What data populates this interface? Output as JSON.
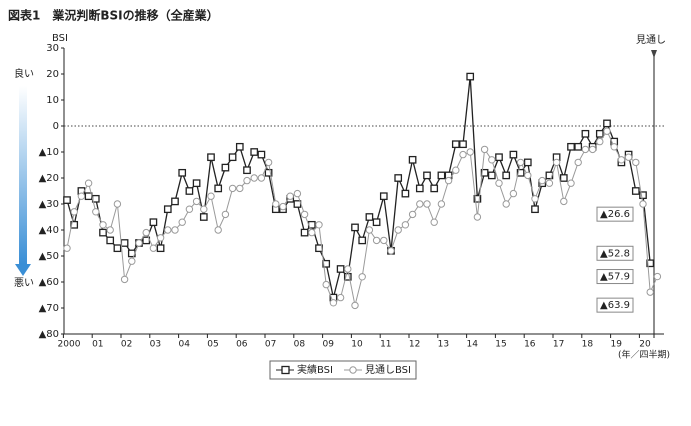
{
  "chart_data": {
    "type": "line",
    "title": "図表1　業況判断BSIの推移（全産業）",
    "y_axis_label": "BSI",
    "x_axis_label": "(年／四半期)",
    "annotations": {
      "good": "良い",
      "bad": "悪い",
      "forecast": "見通し"
    },
    "categories": [
      "2000",
      null,
      null,
      null,
      "01",
      null,
      null,
      null,
      "02",
      null,
      null,
      null,
      "03",
      null,
      null,
      null,
      "04",
      null,
      null,
      null,
      "05",
      null,
      null,
      null,
      "06",
      null,
      null,
      null,
      "07",
      null,
      null,
      null,
      "08",
      null,
      null,
      null,
      "09",
      null,
      null,
      null,
      "10",
      null,
      null,
      null,
      "11",
      null,
      null,
      null,
      "12",
      null,
      null,
      null,
      "13",
      null,
      null,
      null,
      "14",
      null,
      null,
      null,
      "15",
      null,
      null,
      null,
      "16",
      null,
      null,
      null,
      "17",
      null,
      null,
      null,
      "18",
      null,
      null,
      null,
      "19",
      null,
      null,
      null,
      "20",
      null,
      null
    ],
    "series": [
      {
        "name": "実績BSI",
        "color": "#222222",
        "marker": "square",
        "values": [
          -28.5,
          -38,
          -25,
          -27,
          -28,
          -41,
          -44,
          -47,
          -45,
          -49,
          -45,
          -44,
          -37,
          -47,
          -32,
          -29,
          -18,
          -25,
          -22,
          -35,
          -12,
          -24,
          -16,
          -12,
          -8,
          -17,
          -10,
          -11,
          -18,
          -32,
          -32,
          -28,
          -30,
          -41,
          -38,
          -47,
          -53,
          -66,
          -55,
          -58,
          -39,
          -44,
          -35,
          -37,
          -27,
          -48,
          -20,
          -26,
          -13,
          -24,
          -19,
          -24,
          -19,
          -19,
          -7,
          -7,
          19,
          -28,
          -18,
          -19,
          -12,
          -19,
          -11,
          -18,
          -14,
          -32,
          -22,
          -19,
          -12,
          -20,
          -8,
          -8,
          -3,
          -8,
          -3,
          1,
          -6,
          -14,
          -11,
          -25,
          -26.6,
          -52.8,
          null
        ],
        "value_labels": [
          null,
          null,
          null,
          null,
          null,
          null,
          null,
          null,
          null,
          null,
          null,
          null,
          null,
          null,
          null,
          null,
          null,
          null,
          null,
          null,
          null,
          null,
          null,
          null,
          null,
          null,
          null,
          null,
          null,
          null,
          null,
          null,
          null,
          null,
          null,
          null,
          null,
          null,
          null,
          null,
          null,
          null,
          null,
          null,
          null,
          null,
          null,
          null,
          null,
          null,
          null,
          null,
          null,
          null,
          null,
          null,
          null,
          null,
          null,
          null,
          null,
          null,
          null,
          null,
          null,
          null,
          null,
          null,
          null,
          null,
          null,
          null,
          null,
          null,
          null,
          null,
          null,
          null,
          null,
          null,
          "▲26.6",
          "▲52.8",
          null
        ]
      },
      {
        "name": "見通しBSI",
        "color": "#9a9a9a",
        "marker": "circle",
        "values": [
          -47,
          -33,
          -27,
          -22,
          -33,
          -38,
          -40,
          -30,
          -59,
          -52,
          -45,
          -41,
          -47,
          -43,
          -40,
          -40,
          -37,
          -32,
          -29,
          -32,
          -27,
          -40,
          -34,
          -24,
          -24,
          -21,
          -20,
          -20,
          -14,
          -30,
          -31,
          -27,
          -26,
          -34,
          -41,
          -38,
          -61,
          -68,
          -66,
          -55,
          -69,
          -58,
          -40,
          -44,
          -44,
          -48,
          -40,
          -38,
          -34,
          -30,
          -30,
          -37,
          -30,
          -21,
          -17,
          -11,
          -10,
          -35,
          -9,
          -13,
          -22,
          -30,
          -26,
          -14,
          -19,
          -28,
          -21,
          -22,
          -14,
          -29,
          -22,
          -14,
          -9,
          -9,
          -6,
          -2,
          -8,
          -13,
          -12,
          -14,
          -30,
          -63.9,
          -57.9
        ],
        "value_labels": [
          null,
          null,
          null,
          null,
          null,
          null,
          null,
          null,
          null,
          null,
          null,
          null,
          null,
          null,
          null,
          null,
          null,
          null,
          null,
          null,
          null,
          null,
          null,
          null,
          null,
          null,
          null,
          null,
          null,
          null,
          null,
          null,
          null,
          null,
          null,
          null,
          null,
          null,
          null,
          null,
          null,
          null,
          null,
          null,
          null,
          null,
          null,
          null,
          null,
          null,
          null,
          null,
          null,
          null,
          null,
          null,
          null,
          null,
          null,
          null,
          null,
          null,
          null,
          null,
          null,
          null,
          null,
          null,
          null,
          null,
          null,
          null,
          null,
          null,
          null,
          null,
          null,
          null,
          null,
          null,
          null,
          "▲63.9",
          "▲57.9"
        ]
      }
    ],
    "ylim": [
      -80,
      30
    ],
    "yticks": [
      30,
      20,
      10,
      0,
      {
        "value": -10,
        "label": "▲10"
      },
      {
        "value": -20,
        "label": "▲20"
      },
      {
        "value": -30,
        "label": "▲30"
      },
      {
        "value": -40,
        "label": "▲40"
      },
      {
        "value": -50,
        "label": "▲50"
      },
      {
        "value": -60,
        "label": "▲60"
      },
      {
        "value": -70,
        "label": "▲70"
      },
      {
        "value": -80,
        "label": "▲80"
      }
    ],
    "reference_line": 0,
    "legend": "bottom"
  }
}
